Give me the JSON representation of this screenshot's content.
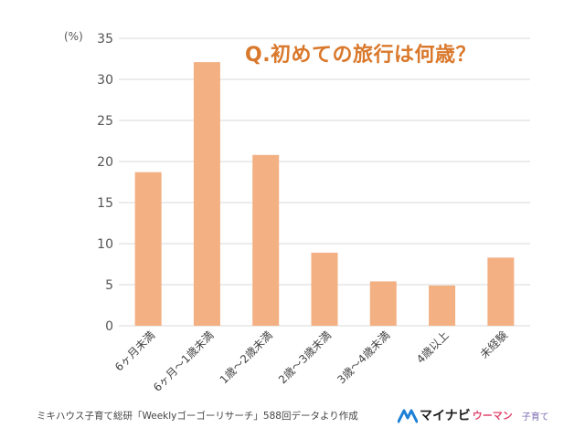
{
  "chart_data": {
    "type": "bar",
    "title": "Q.初めての旅行は何歳？",
    "ylabel": "(%)",
    "ylim": [
      0,
      35
    ],
    "yticks": [
      0,
      5,
      10,
      15,
      20,
      25,
      30,
      35
    ],
    "grid": true,
    "categories": [
      "6ヶ月未満",
      "6ヶ月～1歳未満",
      "1歳～2歳未満",
      "2歳～3歳未満",
      "3歳～4歳未満",
      "4歳以上",
      "未経験"
    ],
    "values": [
      18.7,
      32.1,
      20.8,
      8.9,
      5.4,
      4.9,
      8.3
    ],
    "colors": {
      "bar": "#f3b083",
      "grid": "#d9d9d9",
      "title": "#d9782b"
    }
  },
  "footer": {
    "source": "ミキハウス子育て総研「Weeklyゴーゴーリサーチ」588回データより作成",
    "logo_brand": "マイナビ",
    "logo_sub1": "ウーマン",
    "logo_sub2": "子育て"
  }
}
